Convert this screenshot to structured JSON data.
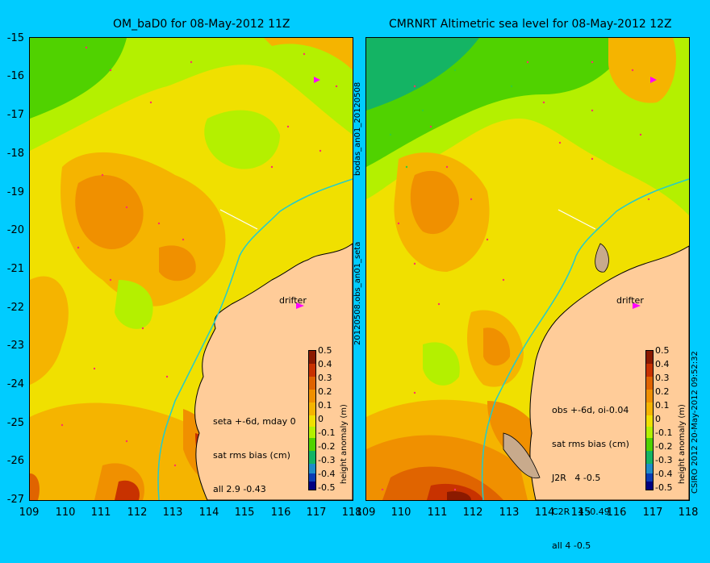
{
  "left_panel": {
    "title": "OM_baD0 for 08-May-2012 11Z",
    "annotation_lines": [
      "seta +-6d, mday 0",
      "sat rms bias (cm)",
      "all 2.9 -0.43"
    ],
    "drifter_label": "drifter"
  },
  "right_panel": {
    "title": "CMRNRT Altimetric sea level  for 08-May-2012 12Z",
    "annotation_lines": [
      "obs +-6d, oi-0.04",
      "sat rms bias (cm)",
      "J2R   4 -0.5",
      "C2R   4 -0.49",
      "all 4 -0.5"
    ],
    "drifter_label": "drifter"
  },
  "side_labels": {
    "middle_top": "bodas_an01_20120508",
    "middle_bottom": "20120508.obs_an01_seta",
    "right_edge": "CSIRO 2012   20-May-2012 09:52:32"
  },
  "axes": {
    "y_ticks": [
      "-15",
      "-16",
      "-17",
      "-18",
      "-19",
      "-20",
      "-21",
      "-22",
      "-23",
      "-24",
      "-25",
      "-26",
      "-27"
    ],
    "x_ticks": [
      "109",
      "110",
      "111",
      "112",
      "113",
      "114",
      "115",
      "116",
      "117",
      "118"
    ]
  },
  "colorbar": {
    "title": "height anomaly (m)",
    "ticks": [
      "0.5",
      "0.4",
      "0.3",
      "0.2",
      "0.1",
      "0",
      "-0.1",
      "-0.2",
      "-0.3",
      "-0.4",
      "-0.5"
    ],
    "colors": [
      "#8b1a00",
      "#c83200",
      "#e06400",
      "#f09000",
      "#f5b400",
      "#f0e000",
      "#b4f000",
      "#50d200",
      "#14b464",
      "#1e8cc8",
      "#0a3cb4",
      "#000080"
    ]
  },
  "colors": {
    "background": "#00ccff",
    "land": "#ffcc99",
    "isobath": "#22cccc",
    "observation": "#ff3366",
    "drifter_marker": "#ff00ff"
  }
}
